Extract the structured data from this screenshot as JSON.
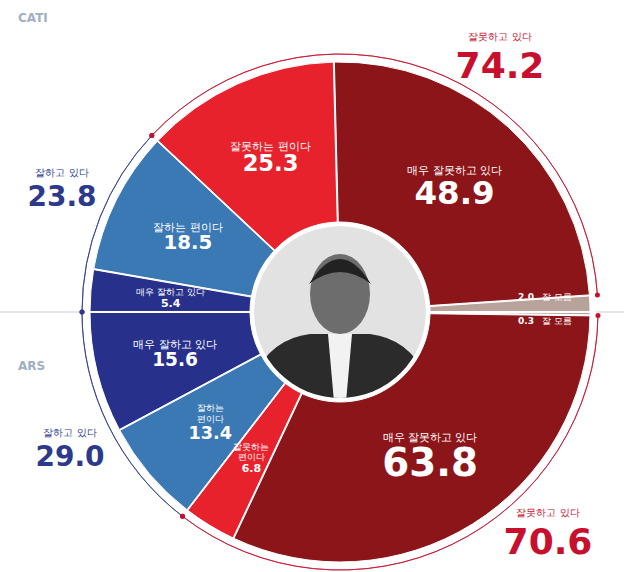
{
  "chart_data": [
    {
      "type": "pie",
      "title": "CATI",
      "categories": [
        "매우 잘하고 있다",
        "잘하는 편이다",
        "잘못하는 편이다",
        "매우 잘못하고 있다",
        "잘 모름"
      ],
      "values": [
        5.4,
        18.5,
        25.3,
        48.9,
        2.0
      ],
      "value_labels": [
        "5.4",
        "18.5",
        "25.3",
        "48.9",
        "2.0"
      ],
      "colors": [
        "#27318b",
        "#3b79b4",
        "#e8222d",
        "#8c1519",
        "#b8a39b"
      ],
      "data_labels": true,
      "groups": {
        "names": [
          "잘하고 있다",
          "잘못하고 있다"
        ],
        "values": [
          23.8,
          74.2
        ],
        "value_labels": [
          "23.8",
          "74.2"
        ],
        "colors": [
          "#2d3a8c",
          "#c8102e"
        ]
      }
    },
    {
      "type": "pie",
      "title": "ARS",
      "categories": [
        "매우 잘하고 있다",
        "잘하는 편이다",
        "잘못하는 편이다",
        "매우 잘못하고 있다",
        "잘 모름"
      ],
      "values": [
        15.6,
        13.4,
        6.8,
        63.8,
        0.3
      ],
      "value_labels": [
        "15.6",
        "13.4",
        "6.8",
        "63.8",
        "0.3"
      ],
      "colors": [
        "#27318b",
        "#3b79b4",
        "#e8222d",
        "#8c1519",
        "#b8a39b"
      ],
      "data_labels": true,
      "groups": {
        "names": [
          "잘하고 있다",
          "잘못하고 있다"
        ],
        "values": [
          29.0,
          70.6
        ],
        "value_labels": [
          "29.0",
          "70.6"
        ],
        "colors": [
          "#2d3a8c",
          "#c8102e"
        ]
      }
    }
  ]
}
